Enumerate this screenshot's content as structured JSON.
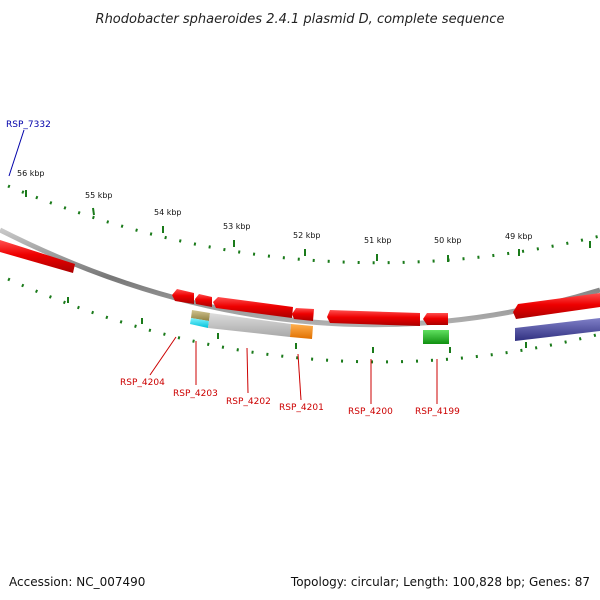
{
  "title": "Rhodobacter sphaeroides 2.4.1 plasmid D, complete sequence",
  "footer": {
    "accession": "Accession: NC_007490",
    "summary": "Topology: circular; Length: 100,828 bp; Genes: 87"
  },
  "scale_labels": [
    "56 kbp",
    "55 kbp",
    "54 kbp",
    "53 kbp",
    "52 kbp",
    "51 kbp",
    "50 kbp",
    "49 kbp"
  ],
  "gene_labels": [
    {
      "name": "RSP_7332",
      "color": "#0000aa"
    },
    {
      "name": "RSP_4204",
      "color": "#cc0000"
    },
    {
      "name": "RSP_4203",
      "color": "#cc0000"
    },
    {
      "name": "RSP_4202",
      "color": "#cc0000"
    },
    {
      "name": "RSP_4201",
      "color": "#cc0000"
    },
    {
      "name": "RSP_4200",
      "color": "#cc0000"
    },
    {
      "name": "RSP_4199",
      "color": "#cc0000"
    }
  ],
  "colors": {
    "backbone": "#8a8a8a",
    "scale_ticks": "#1a7a1a",
    "gene_forward": "#ee0000",
    "gene_gray": "#bbbbbb",
    "gene_orange": "#ff8c00",
    "gene_cyan": "#00d8e8",
    "gene_olive": "#b0a060",
    "gene_green": "#20b020",
    "gene_navy": "#4a4a9a"
  }
}
